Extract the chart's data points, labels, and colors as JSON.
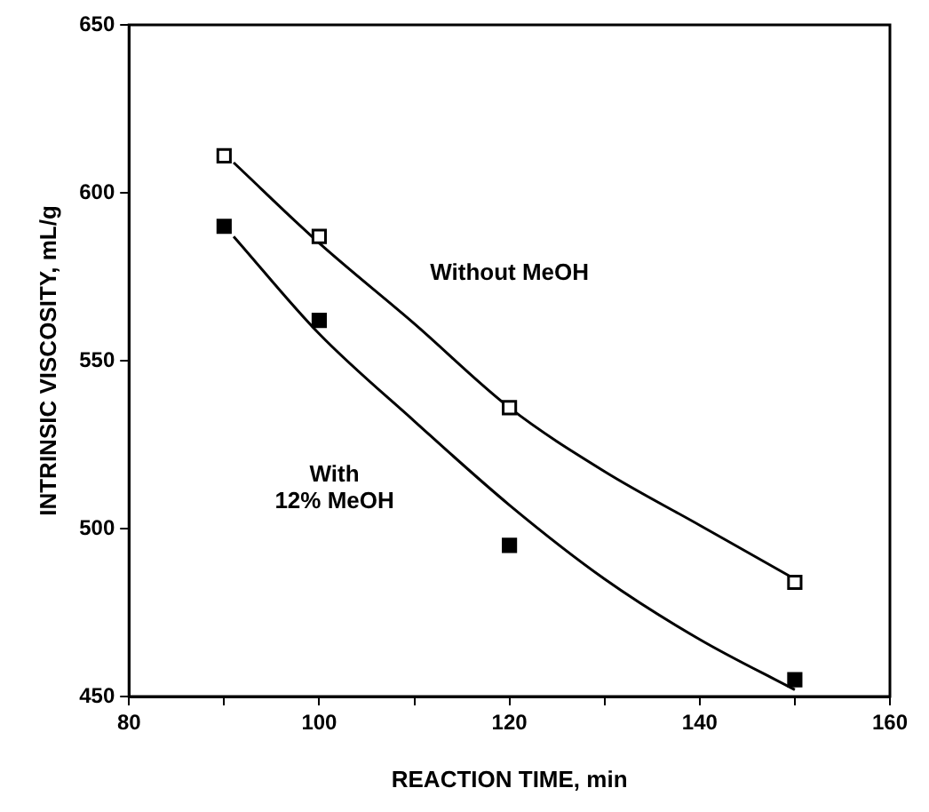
{
  "chart_data": {
    "type": "scatter",
    "xlabel": "REACTION TIME, min",
    "ylabel": "INTRINSIC VISCOSITY, mL/g",
    "xlim": [
      80,
      160
    ],
    "ylim": [
      450,
      650
    ],
    "xticks": [
      80,
      {
        "value": 90,
        "label": null
      },
      100,
      {
        "value": 110,
        "label": null
      },
      120,
      {
        "value": 130,
        "label": null
      },
      140,
      {
        "value": 150,
        "label": null
      },
      160
    ],
    "yticks": [
      450,
      500,
      550,
      600,
      650
    ],
    "grid": false,
    "legend": false,
    "series": [
      {
        "marker": "square",
        "color": "#ffffff",
        "x": [
          90,
          100,
          120,
          150
        ],
        "values": [
          611,
          587,
          536,
          484
        ]
      },
      {
        "marker": "square",
        "color": "#000000",
        "x": [
          90,
          100,
          120,
          150
        ],
        "values": [
          590,
          562,
          495,
          455
        ]
      },
      {
        "type": "line",
        "marker": "none",
        "line_style": "solid",
        "color": "#000000",
        "x": [
          91,
          100,
          110,
          120,
          130,
          140,
          150
        ],
        "values": [
          609,
          585,
          561,
          536,
          517,
          501,
          485
        ]
      },
      {
        "type": "line",
        "marker": "none",
        "line_style": "solid",
        "color": "#000000",
        "x": [
          91,
          100,
          110,
          120,
          130,
          140,
          150
        ],
        "values": [
          587,
          558,
          532,
          507,
          485,
          467,
          452
        ]
      }
    ],
    "annotations": [
      "Without MeOH",
      "With\n12% MeOH"
    ]
  }
}
